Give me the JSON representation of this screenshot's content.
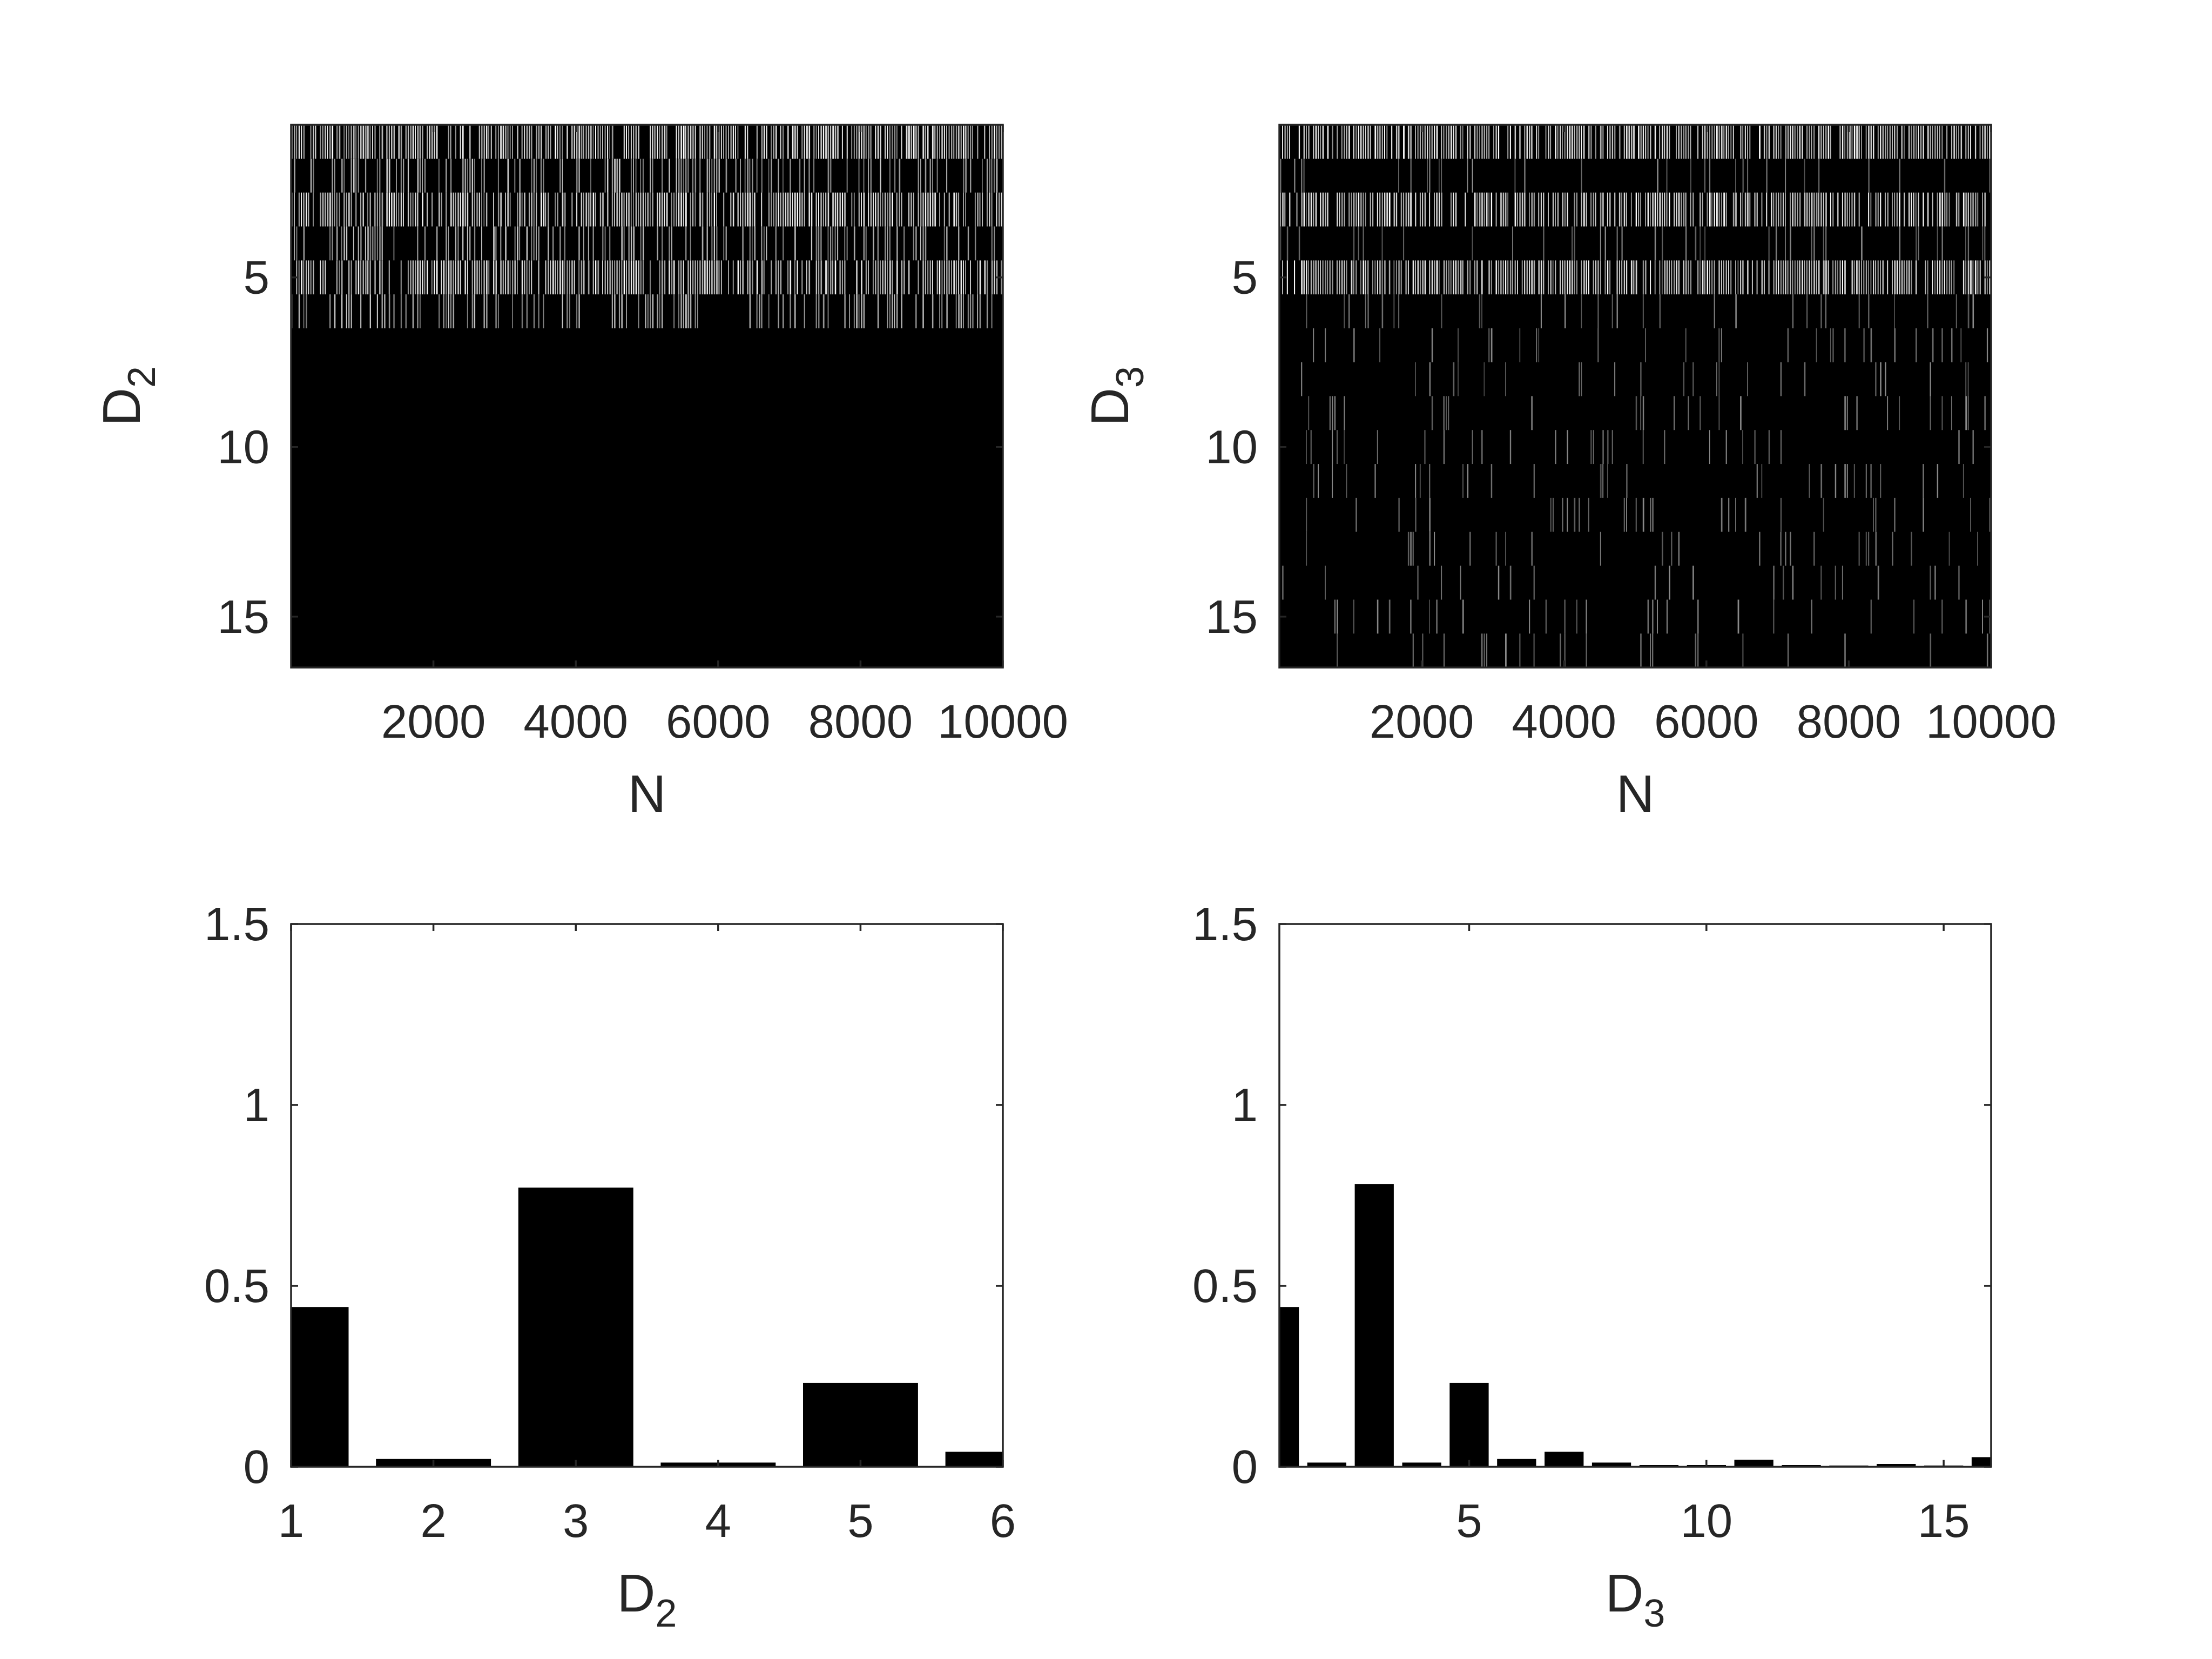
{
  "chart_data": [
    {
      "type": "heatmap",
      "position": "top-left",
      "xlabel": "N",
      "ylabel": "D",
      "ylabel_subscript": "2",
      "xticks": [
        "2000",
        "4000",
        "6000",
        "8000",
        "10000"
      ],
      "yticks": [
        "5",
        "10",
        "15"
      ],
      "xlim": [
        0,
        10000
      ],
      "ylim": [
        0.5,
        16.5
      ],
      "y_direction": "reversed",
      "colormap": "gray",
      "rows_dense": [
        1,
        3,
        5
      ],
      "rows_sparse": [
        2,
        4,
        6
      ],
      "rows_dark_from": 7,
      "note_not_in_source": "binary occupancy raster; pattern approximated"
    },
    {
      "type": "heatmap",
      "position": "top-right",
      "xlabel": "N",
      "ylabel": "D",
      "ylabel_subscript": "3",
      "xticks": [
        "2000",
        "4000",
        "6000",
        "8000",
        "10000"
      ],
      "yticks": [
        "5",
        "10",
        "15"
      ],
      "xlim": [
        0,
        10000
      ],
      "ylim": [
        0.5,
        16.5
      ],
      "y_direction": "reversed",
      "colormap": "gray",
      "rows_dense": [
        1,
        3,
        5
      ],
      "rows_sparse": [
        2,
        4,
        6,
        7,
        8,
        9,
        10,
        11,
        12,
        13,
        14,
        15,
        16
      ]
    },
    {
      "type": "bar",
      "position": "bottom-left",
      "xlabel": "D",
      "xlabel_subscript": "2",
      "categories": [
        1,
        2,
        3,
        4,
        5,
        6
      ],
      "values": [
        0.44,
        0.02,
        0.77,
        0.01,
        0.23,
        0.04
      ],
      "xlim": [
        1,
        6
      ],
      "ylim": [
        0,
        1.5
      ],
      "xticks": [
        "1",
        "2",
        "3",
        "4",
        "5",
        "6"
      ],
      "yticks": [
        "0",
        "0.5",
        "1",
        "1.5"
      ],
      "bar_color": "#000000"
    },
    {
      "type": "bar",
      "position": "bottom-right",
      "xlabel": "D",
      "xlabel_subscript": "3",
      "categories": [
        1,
        2,
        3,
        4,
        5,
        6,
        7,
        8,
        9,
        10,
        11,
        12,
        13,
        14,
        15,
        16
      ],
      "values": [
        0.44,
        0.01,
        0.78,
        0.01,
        0.23,
        0.02,
        0.04,
        0.01,
        0.003,
        0.003,
        0.018,
        0.003,
        0.002,
        0.006,
        0.002,
        0.025
      ],
      "xlim": [
        1,
        16
      ],
      "ylim": [
        0,
        1.5
      ],
      "xticks": [
        "5",
        "10",
        "15"
      ],
      "yticks": [
        "0",
        "0.5",
        "1",
        "1.5"
      ],
      "bar_color": "#000000"
    }
  ]
}
